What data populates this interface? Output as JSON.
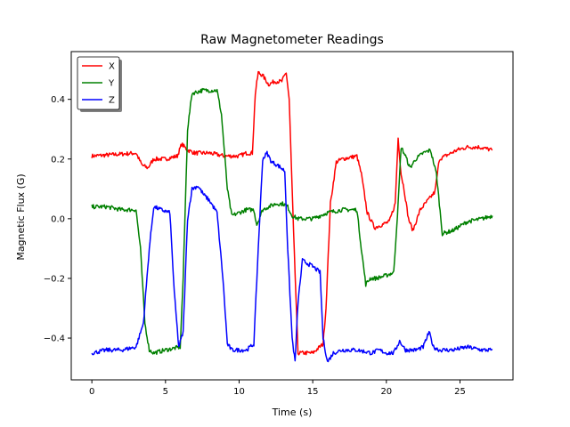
{
  "chart_data": {
    "type": "line",
    "title": "Raw Magnetometer Readings",
    "xlabel": "Time (s)",
    "ylabel": "Magnetic Flux (G)",
    "xlim": [
      -1.4,
      28.6
    ],
    "ylim": [
      -0.54,
      0.56
    ],
    "xticks": [
      0,
      5,
      10,
      15,
      20,
      25
    ],
    "yticks": [
      -0.4,
      -0.2,
      0.0,
      0.2,
      0.4
    ],
    "ytick_labels": [
      "−0.4",
      "−0.2",
      "0.0",
      "0.2",
      "0.4"
    ],
    "grid": false,
    "legend": "top-left",
    "series": [
      {
        "name": "X",
        "color": "#ff0000",
        "x": [
          0,
          3.0,
          3.4,
          3.8,
          4.2,
          5.0,
          5.8,
          6.1,
          6.5,
          7.0,
          8.0,
          9.0,
          10.0,
          10.5,
          10.9,
          11.1,
          11.3,
          11.6,
          12.0,
          12.4,
          12.9,
          13.2,
          13.4,
          13.7,
          14.0,
          15.0,
          15.7,
          15.9,
          16.2,
          16.6,
          17.0,
          18.0,
          18.3,
          18.7,
          19.2,
          19.7,
          20.2,
          20.6,
          20.8,
          21.0,
          21.2,
          21.5,
          21.8,
          22.3,
          22.8,
          23.3,
          23.6,
          24.0,
          24.8,
          25.5,
          26.3,
          27.2
        ],
        "y": [
          0.21,
          0.22,
          0.18,
          0.17,
          0.2,
          0.2,
          0.21,
          0.25,
          0.23,
          0.22,
          0.22,
          0.21,
          0.21,
          0.22,
          0.22,
          0.42,
          0.49,
          0.48,
          0.45,
          0.46,
          0.46,
          0.49,
          0.4,
          -0.05,
          -0.45,
          -0.45,
          -0.42,
          -0.3,
          0.05,
          0.19,
          0.2,
          0.21,
          0.15,
          0.02,
          -0.03,
          -0.02,
          -0.01,
          0.05,
          0.27,
          0.15,
          0.1,
          0.0,
          -0.04,
          0.03,
          0.06,
          0.09,
          0.2,
          0.21,
          0.23,
          0.24,
          0.24,
          0.23
        ]
      },
      {
        "name": "Y",
        "color": "#008000",
        "x": [
          0,
          1.0,
          2.0,
          3.0,
          3.3,
          3.6,
          3.9,
          4.2,
          5.0,
          6.0,
          6.2,
          6.5,
          6.8,
          7.5,
          8.0,
          8.5,
          8.8,
          9.2,
          9.5,
          10.0,
          10.5,
          11.0,
          11.2,
          11.6,
          12.0,
          12.5,
          13.0,
          13.3,
          13.6,
          14.0,
          15.0,
          16.0,
          17.0,
          18.0,
          18.3,
          18.6,
          18.9,
          19.3,
          20.0,
          20.5,
          20.8,
          21.0,
          21.3,
          21.6,
          22.0,
          22.5,
          23.0,
          23.4,
          23.8,
          24.5,
          25.5,
          26.5,
          27.2
        ],
        "y": [
          0.04,
          0.04,
          0.03,
          0.03,
          -0.1,
          -0.35,
          -0.44,
          -0.45,
          -0.44,
          -0.43,
          -0.2,
          0.3,
          0.42,
          0.43,
          0.43,
          0.43,
          0.35,
          0.1,
          0.01,
          0.02,
          0.03,
          0.03,
          -0.02,
          0.03,
          0.04,
          0.05,
          0.05,
          0.04,
          0.01,
          0.0,
          0.0,
          0.02,
          0.03,
          0.03,
          -0.1,
          -0.22,
          -0.2,
          -0.2,
          -0.19,
          -0.18,
          0.05,
          0.24,
          0.21,
          0.17,
          0.2,
          0.22,
          0.23,
          0.15,
          -0.05,
          -0.04,
          -0.01,
          0.0,
          0.01
        ]
      },
      {
        "name": "Z",
        "color": "#0000ff",
        "x": [
          0,
          1.0,
          2.0,
          3.0,
          3.5,
          3.9,
          4.2,
          4.7,
          5.3,
          5.6,
          5.9,
          6.2,
          6.5,
          6.8,
          7.2,
          7.6,
          8.0,
          8.5,
          8.9,
          9.2,
          9.5,
          10.0,
          10.5,
          11.0,
          11.3,
          11.6,
          11.9,
          12.2,
          12.6,
          13.1,
          13.3,
          13.6,
          13.8,
          14.0,
          14.3,
          15.0,
          15.5,
          15.7,
          16.0,
          16.4,
          17.0,
          18.0,
          19.0,
          19.5,
          20.0,
          20.5,
          20.9,
          21.3,
          22.0,
          22.5,
          22.9,
          23.2,
          23.6,
          24.5,
          25.5,
          26.5,
          27.2
        ],
        "y": [
          -0.45,
          -0.44,
          -0.44,
          -0.43,
          -0.35,
          -0.1,
          0.04,
          0.03,
          0.02,
          -0.25,
          -0.43,
          -0.38,
          0.0,
          0.1,
          0.11,
          0.08,
          0.06,
          0.02,
          -0.2,
          -0.42,
          -0.44,
          -0.44,
          -0.44,
          -0.42,
          -0.1,
          0.2,
          0.22,
          0.19,
          0.18,
          0.16,
          -0.1,
          -0.4,
          -0.48,
          -0.28,
          -0.14,
          -0.16,
          -0.18,
          -0.4,
          -0.48,
          -0.45,
          -0.44,
          -0.44,
          -0.45,
          -0.44,
          -0.45,
          -0.45,
          -0.41,
          -0.44,
          -0.44,
          -0.43,
          -0.38,
          -0.43,
          -0.44,
          -0.44,
          -0.43,
          -0.44,
          -0.44
        ]
      }
    ]
  }
}
